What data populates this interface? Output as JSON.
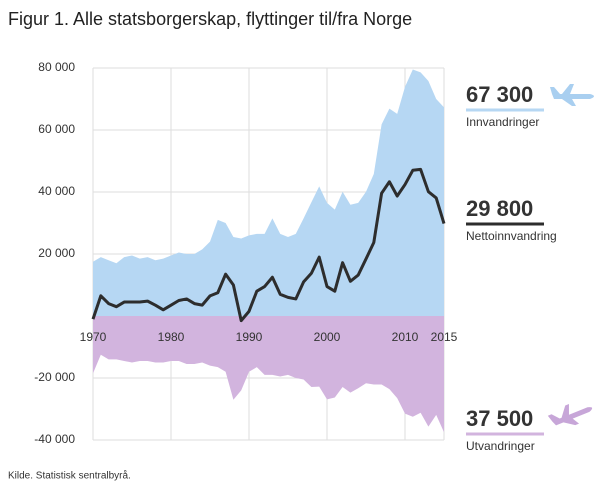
{
  "chart_data": {
    "type": "area",
    "title": "Figur 1. Alle statsborgerskap, flyttinger til/fra Norge",
    "source": "Kilde. Statistisk sentralbyrå.",
    "x": [
      1970,
      1971,
      1972,
      1973,
      1974,
      1975,
      1976,
      1977,
      1978,
      1979,
      1980,
      1981,
      1982,
      1983,
      1984,
      1985,
      1986,
      1987,
      1988,
      1989,
      1990,
      1991,
      1992,
      1993,
      1994,
      1995,
      1996,
      1997,
      1998,
      1999,
      2000,
      2001,
      2002,
      2003,
      2004,
      2005,
      2006,
      2007,
      2008,
      2009,
      2010,
      2011,
      2012,
      2013,
      2014,
      2015
    ],
    "xlim": [
      1970,
      2015
    ],
    "xticks": [
      1970,
      1980,
      1990,
      2000,
      2010,
      2015
    ],
    "ylim": [
      -40000,
      80000
    ],
    "yticks": [
      {
        "value": -40000,
        "label": "-40 000"
      },
      {
        "value": -20000,
        "label": "-20 000"
      },
      {
        "value": 20000,
        "label": "20 000"
      },
      {
        "value": 40000,
        "label": "40 000"
      },
      {
        "value": 60000,
        "label": "60 000"
      },
      {
        "value": 80000,
        "label": "80 000"
      }
    ],
    "grid": true,
    "series": [
      {
        "name": "Innvandringer",
        "style": "area",
        "color": "#b6d7f3",
        "callout": {
          "value": 67300,
          "label": "67 300"
        },
        "values": [
          17500,
          19000,
          18000,
          17000,
          19000,
          19500,
          18500,
          19000,
          18000,
          18500,
          19500,
          20500,
          20000,
          20000,
          21500,
          24000,
          31000,
          30000,
          25500,
          25000,
          26000,
          26500,
          26500,
          31500,
          26500,
          25500,
          26500,
          31500,
          36700,
          41800,
          36500,
          34300,
          40100,
          35900,
          36500,
          40100,
          45800,
          61800,
          66900,
          65200,
          73900,
          79500,
          78600,
          75800,
          70000,
          67300
        ]
      },
      {
        "name": "Utvandringer",
        "style": "area",
        "color": "#d2b4de",
        "callout": {
          "value": 37500,
          "label": "37 500"
        },
        "values": [
          -18500,
          -12500,
          -14000,
          -14000,
          -14500,
          -15000,
          -14500,
          -14500,
          -15000,
          -15000,
          -14500,
          -14500,
          -15500,
          -15500,
          -15000,
          -16000,
          -16500,
          -18000,
          -27000,
          -24000,
          -18000,
          -16500,
          -19000,
          -19000,
          -19500,
          -19000,
          -20000,
          -20500,
          -22900,
          -22800,
          -26900,
          -26300,
          -22900,
          -24700,
          -23300,
          -21700,
          -22100,
          -22100,
          -23600,
          -26500,
          -31500,
          -32500,
          -31200,
          -35700,
          -31900,
          -37500
        ]
      },
      {
        "name": "Nettoinnvandring",
        "style": "line",
        "color": "#2d2d2d",
        "callout": {
          "value": 29800,
          "label": "29 800"
        },
        "values": [
          -1000,
          6500,
          4000,
          3000,
          4500,
          4500,
          4500,
          4800,
          3500,
          2000,
          3500,
          5000,
          5500,
          4000,
          3500,
          6500,
          7500,
          13500,
          10000,
          -1500,
          1500,
          8000,
          9500,
          12500,
          7000,
          6000,
          5500,
          11000,
          13800,
          19000,
          9500,
          8000,
          17200,
          11200,
          13200,
          18400,
          23700,
          39600,
          43300,
          38700,
          42400,
          47000,
          47300,
          40100,
          38100,
          29800
        ]
      }
    ]
  }
}
